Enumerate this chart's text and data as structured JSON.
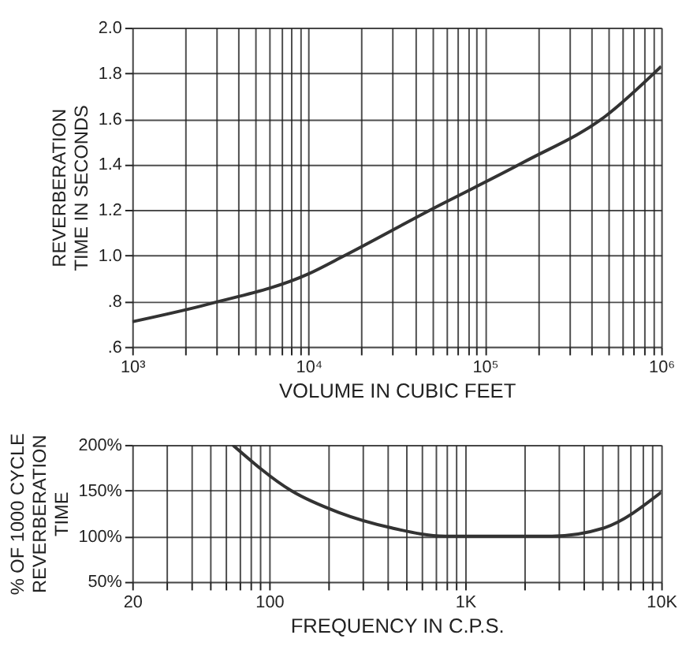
{
  "chart_data": [
    {
      "type": "line",
      "xlabel": "VOLUME IN CUBIC FEET",
      "ylabel": "REVERBERATION\nTIME IN SECONDS",
      "log": "x",
      "grid": true,
      "marker": "none",
      "line_style": "solid",
      "x": [
        1000,
        2800,
        10000,
        16000,
        49000,
        166000,
        480000,
        1000000
      ],
      "series": [
        {
          "color": "#333333",
          "values": [
            0.71,
            0.79,
            0.92,
            1.0,
            1.2,
            1.41,
            1.61,
            1.83
          ]
        }
      ],
      "xlim": [
        1000,
        1000000
      ],
      "ylim": [
        0.6,
        2.0
      ],
      "xticks": [
        {
          "value": 1000,
          "label": "10³"
        },
        {
          "value": 2000,
          "label": null
        },
        {
          "value": 3000,
          "label": null
        },
        {
          "value": 4000,
          "label": null
        },
        {
          "value": 5000,
          "label": null
        },
        {
          "value": 6000,
          "label": null
        },
        {
          "value": 7000,
          "label": null
        },
        {
          "value": 8000,
          "label": null
        },
        {
          "value": 9000,
          "label": null
        },
        {
          "value": 10000,
          "label": "10⁴"
        },
        {
          "value": 20000,
          "label": null
        },
        {
          "value": 30000,
          "label": null
        },
        {
          "value": 40000,
          "label": null
        },
        {
          "value": 50000,
          "label": null
        },
        {
          "value": 60000,
          "label": null
        },
        {
          "value": 70000,
          "label": null
        },
        {
          "value": 80000,
          "label": null
        },
        {
          "value": 90000,
          "label": null
        },
        {
          "value": 100000,
          "label": "10⁵"
        },
        {
          "value": 200000,
          "label": null
        },
        {
          "value": 300000,
          "label": null
        },
        {
          "value": 400000,
          "label": null
        },
        {
          "value": 500000,
          "label": null
        },
        {
          "value": 600000,
          "label": null
        },
        {
          "value": 700000,
          "label": null
        },
        {
          "value": 800000,
          "label": null
        },
        {
          "value": 900000,
          "label": null
        },
        {
          "value": 1000000,
          "label": "10⁶"
        }
      ],
      "yticks": [
        {
          "value": 0.6,
          "label": ".6"
        },
        {
          "value": 0.8,
          "label": ".8"
        },
        {
          "value": 1.0,
          "label": "1.0"
        },
        {
          "value": 1.2,
          "label": "1.2"
        },
        {
          "value": 1.4,
          "label": "1.4"
        },
        {
          "value": 1.6,
          "label": "1.6"
        },
        {
          "value": 1.8,
          "label": "1.8"
        },
        {
          "value": 2.0,
          "label": "2.0"
        }
      ]
    },
    {
      "type": "line",
      "xlabel": "FREQUENCY IN C.P.S.",
      "ylabel": "% OF 1000 CYCLE\nREVERBERATION\nTIME",
      "log": "x",
      "grid": true,
      "marker": "none",
      "line_style": "solid",
      "x": [
        65,
        129,
        226,
        422,
        790,
        2770,
        5100,
        10000
      ],
      "series": [
        {
          "color": "#333333",
          "values": [
            200,
            150,
            126,
            109,
            100,
            100,
            109,
            148
          ]
        }
      ],
      "xlim": [
        20,
        10000
      ],
      "ylim": [
        50,
        200
      ],
      "xticks": [
        {
          "value": 20,
          "label": "20"
        },
        {
          "value": 30,
          "label": null
        },
        {
          "value": 40,
          "label": null
        },
        {
          "value": 50,
          "label": null
        },
        {
          "value": 60,
          "label": null
        },
        {
          "value": 70,
          "label": null
        },
        {
          "value": 80,
          "label": null
        },
        {
          "value": 90,
          "label": null
        },
        {
          "value": 100,
          "label": "100"
        },
        {
          "value": 200,
          "label": null
        },
        {
          "value": 300,
          "label": null
        },
        {
          "value": 400,
          "label": null
        },
        {
          "value": 500,
          "label": null
        },
        {
          "value": 600,
          "label": null
        },
        {
          "value": 700,
          "label": null
        },
        {
          "value": 800,
          "label": null
        },
        {
          "value": 900,
          "label": null
        },
        {
          "value": 1000,
          "label": "1K"
        },
        {
          "value": 2000,
          "label": null
        },
        {
          "value": 3000,
          "label": null
        },
        {
          "value": 4000,
          "label": null
        },
        {
          "value": 5000,
          "label": null
        },
        {
          "value": 6000,
          "label": null
        },
        {
          "value": 7000,
          "label": null
        },
        {
          "value": 8000,
          "label": null
        },
        {
          "value": 9000,
          "label": null
        },
        {
          "value": 10000,
          "label": "10K"
        }
      ],
      "yticks": [
        {
          "value": 50,
          "label": "50%"
        },
        {
          "value": 100,
          "label": "100%"
        },
        {
          "value": 150,
          "label": "150%"
        },
        {
          "value": 200,
          "label": "200%"
        }
      ]
    }
  ]
}
